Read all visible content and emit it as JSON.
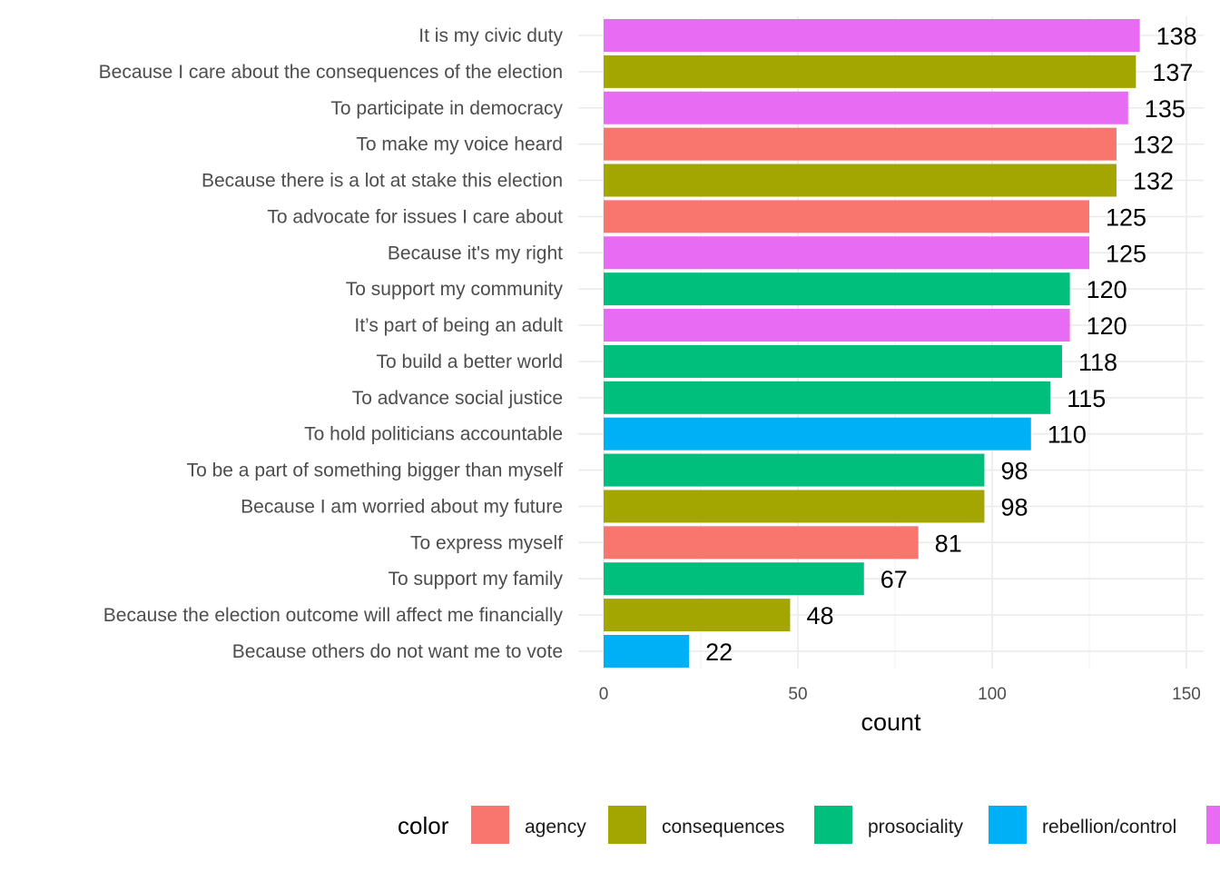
{
  "chart_data": {
    "type": "bar",
    "orientation": "horizontal",
    "xlabel": "count",
    "ylabel": "",
    "xlim": [
      0,
      150
    ],
    "x_ticks": [
      0,
      50,
      100,
      150
    ],
    "grid": true,
    "legend": {
      "title": "color",
      "placement": "bottom",
      "entries": [
        {
          "name": "agency",
          "color": "#F8766D"
        },
        {
          "name": "consequences",
          "color": "#A3A500"
        },
        {
          "name": "prosociality",
          "color": "#00BF7D"
        },
        {
          "name": "rebellion/control",
          "color": "#00B0F6"
        },
        {
          "name": "",
          "color": "#E76BF3"
        }
      ]
    },
    "bars": [
      {
        "label": "It is my civic duty",
        "value": 138,
        "group": 4
      },
      {
        "label": "Because I care about the consequences of the election",
        "value": 137,
        "group": 1
      },
      {
        "label": "To participate in democracy",
        "value": 135,
        "group": 4
      },
      {
        "label": "To make my voice heard",
        "value": 132,
        "group": 0
      },
      {
        "label": "Because there is a lot at stake this election",
        "value": 132,
        "group": 1
      },
      {
        "label": "To advocate for issues I care about",
        "value": 125,
        "group": 0
      },
      {
        "label": "Because it's my right",
        "value": 125,
        "group": 4
      },
      {
        "label": "To support my community",
        "value": 120,
        "group": 2
      },
      {
        "label": "It’s part of being an adult",
        "value": 120,
        "group": 4
      },
      {
        "label": "To build a better world",
        "value": 118,
        "group": 2
      },
      {
        "label": "To advance social justice",
        "value": 115,
        "group": 2
      },
      {
        "label": "To hold politicians accountable",
        "value": 110,
        "group": 3
      },
      {
        "label": "To be a part of something bigger than myself",
        "value": 98,
        "group": 2
      },
      {
        "label": "Because I am worried about my future",
        "value": 98,
        "group": 1
      },
      {
        "label": "To express myself",
        "value": 81,
        "group": 0
      },
      {
        "label": "To support my family",
        "value": 67,
        "group": 2
      },
      {
        "label": "Because the election outcome will affect me financially",
        "value": 48,
        "group": 1
      },
      {
        "label": "Because others do not want me to vote",
        "value": 22,
        "group": 3
      }
    ]
  }
}
